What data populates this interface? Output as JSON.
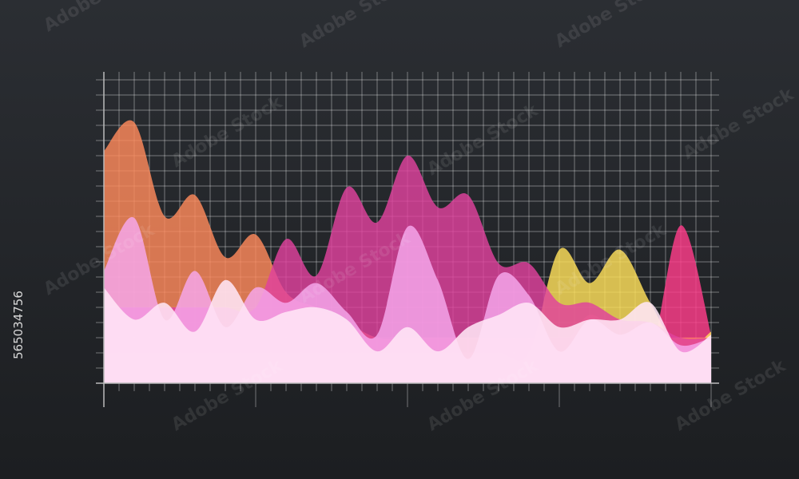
{
  "watermark": "Adobe Stock",
  "stock_id": "565034756",
  "chart_data": {
    "type": "area",
    "grid": true,
    "xlim": [
      0,
      40
    ],
    "ylim": [
      0,
      20
    ],
    "xticks": [
      0,
      1,
      2,
      3,
      4,
      5,
      6,
      7,
      8,
      9,
      10,
      11,
      12,
      13,
      14,
      15,
      16,
      17,
      18,
      19,
      20,
      21,
      22,
      23,
      24,
      25,
      26,
      27,
      28,
      29,
      30,
      31,
      32,
      33,
      34,
      35,
      36,
      37,
      38,
      39,
      40
    ],
    "yticks": [
      0,
      1,
      2,
      3,
      4,
      5,
      6,
      7,
      8,
      9,
      10,
      11,
      12,
      13,
      14,
      15,
      16,
      17,
      18,
      19,
      20
    ],
    "x": [
      0,
      2,
      4,
      6,
      8,
      10,
      12,
      14,
      16,
      18,
      20,
      22,
      24,
      26,
      28,
      30,
      32,
      34,
      36,
      38,
      40
    ],
    "series": [
      {
        "color": "#ff3d8a",
        "values": [
          1,
          1,
          1,
          1,
          1,
          1,
          1,
          1,
          1,
          1,
          1,
          1,
          1,
          1,
          1,
          2,
          4.5,
          3,
          2,
          10.4,
          3.2
        ]
      },
      {
        "color": "#ffe15a",
        "values": [
          2,
          2,
          2,
          2,
          2,
          2,
          2,
          2,
          2,
          2,
          2,
          2,
          2,
          2,
          2,
          8.8,
          6.6,
          8.8,
          5.3,
          2.1,
          3.4
        ]
      },
      {
        "color": "#ff8a5c",
        "values": [
          15.3,
          17.2,
          11,
          12.4,
          8.3,
          9.8,
          6,
          5,
          4,
          3,
          3,
          3,
          3,
          3,
          3,
          3,
          3,
          3,
          3,
          3,
          3
        ]
      },
      {
        "color": "#e0429e",
        "values": [
          5,
          5,
          5,
          5,
          5,
          5,
          9.5,
          7.1,
          12.9,
          10.6,
          15,
          11.6,
          12.4,
          7.9,
          7.9,
          5.3,
          5.3,
          4.2,
          4,
          3,
          3
        ]
      },
      {
        "color": "#f7a8ee",
        "values": [
          7.4,
          10.9,
          4.2,
          7.4,
          3.7,
          6.3,
          5.3,
          6.6,
          4.7,
          3.2,
          10.3,
          6.8,
          1.6,
          7.1,
          5.8,
          2.1,
          4.2,
          3.2,
          4,
          2.5,
          3
        ]
      },
      {
        "color": "#ffe6f6",
        "values": [
          6.3,
          4.2,
          5.3,
          3.4,
          6.8,
          4.2,
          4.7,
          5,
          4.2,
          2.1,
          3.7,
          2.1,
          3.7,
          4.5,
          5.3,
          3.7,
          4.2,
          4.2,
          5.3,
          2.1,
          3.2
        ]
      }
    ]
  }
}
